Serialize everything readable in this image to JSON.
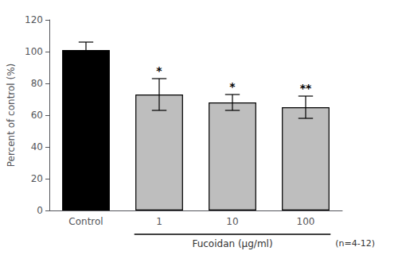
{
  "chart_data": {
    "type": "bar",
    "categories": [
      "Control",
      "1",
      "10",
      "100"
    ],
    "values": [
      101,
      73,
      68,
      65
    ],
    "errors": [
      5,
      10,
      5,
      7
    ],
    "colors": [
      "#000000",
      "#bebebe",
      "#bebebe",
      "#bebebe"
    ],
    "significance": [
      null,
      "*",
      "*",
      "**"
    ],
    "ylabel": "Percent of control (%)",
    "xlabel": "Fucoidan (μg/ml)",
    "annotations": [
      "(n=4-12)"
    ],
    "ylim": [
      0,
      120
    ],
    "yticks": [
      0,
      20,
      40,
      60,
      80,
      100,
      120
    ],
    "grid": false
  }
}
